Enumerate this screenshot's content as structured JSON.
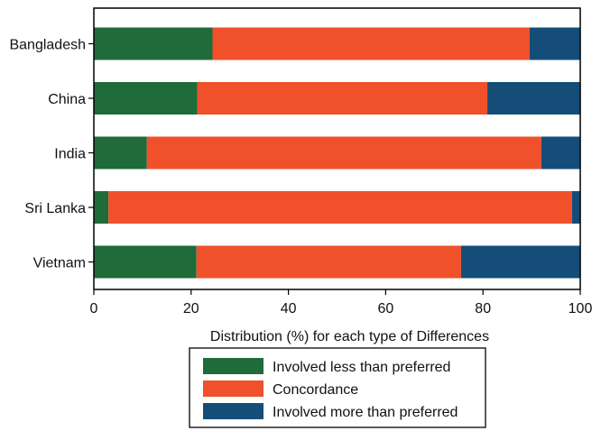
{
  "chart_data": {
    "type": "bar",
    "orientation": "horizontal",
    "stacked": true,
    "title": "",
    "xlabel": "Distribution (%) for each type of Differences",
    "ylabel": "",
    "xlim": [
      0,
      100
    ],
    "xticks": [
      0,
      20,
      40,
      60,
      80,
      100
    ],
    "categories": [
      "Bangladesh",
      "China",
      "India",
      "Sri Lanka",
      "Vietnam"
    ],
    "series": [
      {
        "name": "Involved less than preferred",
        "color": "#1f6b3a",
        "values": [
          24.4,
          21.3,
          10.9,
          3.0,
          21.1
        ]
      },
      {
        "name": "Concordance",
        "color": "#f0502a",
        "values": [
          65.2,
          59.6,
          81.1,
          95.3,
          54.4
        ]
      },
      {
        "name": "Involved more than preferred",
        "color": "#144e78",
        "values": [
          10.4,
          19.1,
          8.0,
          1.7,
          24.5
        ]
      }
    ],
    "legend_position": "bottom",
    "grid": false
  }
}
